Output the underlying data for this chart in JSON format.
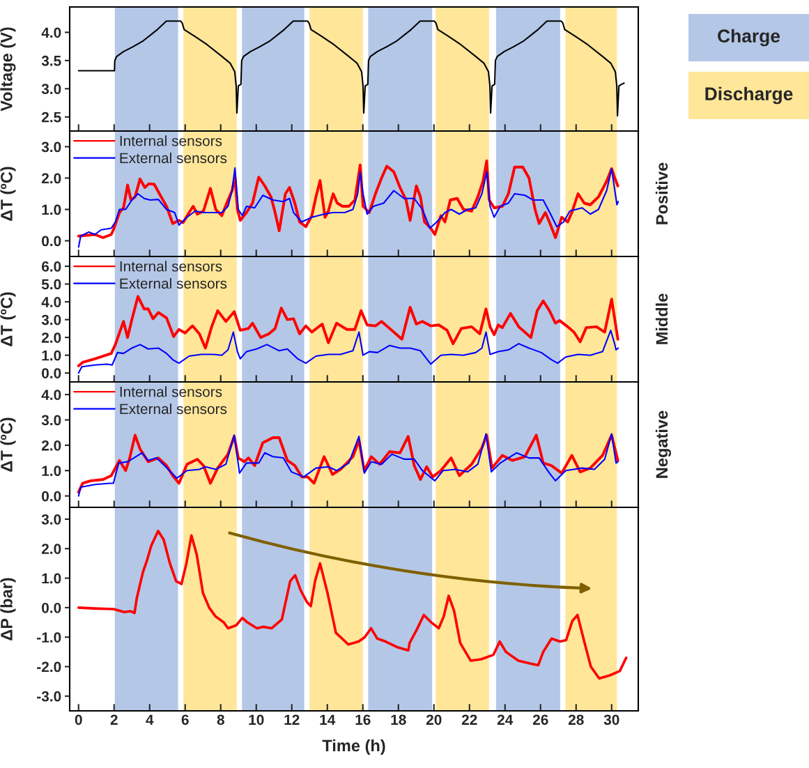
{
  "chart_data": [
    {
      "type": "line",
      "ylabel": "Voltage (V)",
      "annotations": [
        "Charge",
        "Discharge"
      ],
      "xlim": [
        -0.5,
        31.5
      ],
      "xticks": [
        0,
        2,
        4,
        6,
        8,
        10,
        12,
        14,
        16,
        18,
        20,
        22,
        24,
        26,
        28,
        30
      ],
      "ylim": [
        2.25,
        4.45
      ],
      "yticks": [
        {
          "value": 2.5,
          "label": "2.5"
        },
        {
          "value": 3.0,
          "label": "3.0"
        },
        {
          "value": 3.5,
          "label": "3.5"
        },
        {
          "value": 4.0,
          "label": "4.0"
        }
      ],
      "tick_labels": "y",
      "bands": [
        {
          "axis": "x",
          "from": 2.04,
          "to": 5.6,
          "color": "#b4c7e7"
        },
        {
          "axis": "x",
          "from": 5.9,
          "to": 8.9,
          "color": "#ffe699"
        },
        {
          "axis": "x",
          "from": 9.2,
          "to": 12.7,
          "color": "#b4c7e7"
        },
        {
          "axis": "x",
          "from": 13.0,
          "to": 16.0,
          "color": "#ffe699"
        },
        {
          "axis": "x",
          "from": 16.3,
          "to": 19.9,
          "color": "#b4c7e7"
        },
        {
          "axis": "x",
          "from": 20.1,
          "to": 23.1,
          "color": "#ffe699"
        },
        {
          "axis": "x",
          "from": 23.5,
          "to": 27.1,
          "color": "#b4c7e7"
        },
        {
          "axis": "x",
          "from": 27.4,
          "to": 30.3,
          "color": "#ffe699"
        }
      ],
      "series": [
        {
          "color": "#000000",
          "x": [
            0,
            2.02,
            2.04,
            2.14,
            2.54,
            3.04,
            3.64,
            4.44,
            4.94,
            5.74,
            5.84,
            5.94,
            6.54,
            7.24,
            8.04,
            8.54,
            8.79,
            8.87,
            8.91,
            8.99,
            9.14,
            9.18,
            9.28,
            9.68,
            10.18,
            10.78,
            11.58,
            12.08,
            12.88,
            12.98,
            13.08,
            13.68,
            14.38,
            15.18,
            15.68,
            15.93,
            16.01,
            16.05,
            16.13,
            16.28,
            16.32,
            16.42,
            16.82,
            17.32,
            17.92,
            18.72,
            19.22,
            20.02,
            20.12,
            20.22,
            20.82,
            21.52,
            22.32,
            22.82,
            23.07,
            23.15,
            23.19,
            23.27,
            23.42,
            23.46,
            23.56,
            23.96,
            24.46,
            25.06,
            25.86,
            26.36,
            27.16,
            27.26,
            27.36,
            27.96,
            28.66,
            29.46,
            29.96,
            30.21,
            30.29,
            30.33,
            30.41,
            30.56,
            30.7
          ],
          "values": [
            3.32,
            3.32,
            3.5,
            3.57,
            3.66,
            3.74,
            3.85,
            4.05,
            4.2,
            4.2,
            4.16,
            4.05,
            3.93,
            3.78,
            3.58,
            3.45,
            3.3,
            3.05,
            2.57,
            3.05,
            3.08,
            3.5,
            3.57,
            3.66,
            3.74,
            3.85,
            4.05,
            4.2,
            4.2,
            4.16,
            4.05,
            3.93,
            3.78,
            3.58,
            3.45,
            3.3,
            3.05,
            2.57,
            3.05,
            3.08,
            3.5,
            3.57,
            3.66,
            3.74,
            3.85,
            4.05,
            4.2,
            4.2,
            4.16,
            4.05,
            3.93,
            3.78,
            3.58,
            3.45,
            3.3,
            3.05,
            2.57,
            3.05,
            3.08,
            3.5,
            3.57,
            3.66,
            3.74,
            3.85,
            4.05,
            4.2,
            4.2,
            4.16,
            4.05,
            3.93,
            3.78,
            3.58,
            3.45,
            3.3,
            3.05,
            2.52,
            3.05,
            3.08,
            3.1
          ]
        }
      ]
    },
    {
      "type": "line",
      "annotations": [
        "Positive"
      ],
      "ylabel": "ΔT (ºC)",
      "xlim": [
        -0.5,
        31.5
      ],
      "xticks": [
        0,
        2,
        4,
        6,
        8,
        10,
        12,
        14,
        16,
        18,
        20,
        22,
        24,
        26,
        28,
        30
      ],
      "ylim": [
        -0.5,
        3.5
      ],
      "yticks": [
        {
          "value": 0,
          "label": "0.0"
        },
        {
          "value": 1,
          "label": "1.0"
        },
        {
          "value": 2,
          "label": "2.0"
        },
        {
          "value": 3,
          "label": "3.0"
        }
      ],
      "tick_labels": "y",
      "legend": "top left",
      "bands": [
        {
          "axis": "x",
          "from": 2.04,
          "to": 5.6,
          "color": "#b4c7e7"
        },
        {
          "axis": "x",
          "from": 5.9,
          "to": 8.9,
          "color": "#ffe699"
        },
        {
          "axis": "x",
          "from": 9.2,
          "to": 12.7,
          "color": "#b4c7e7"
        },
        {
          "axis": "x",
          "from": 13.0,
          "to": 16.0,
          "color": "#ffe699"
        },
        {
          "axis": "x",
          "from": 16.3,
          "to": 19.9,
          "color": "#b4c7e7"
        },
        {
          "axis": "x",
          "from": 20.1,
          "to": 23.1,
          "color": "#ffe699"
        },
        {
          "axis": "x",
          "from": 23.5,
          "to": 27.1,
          "color": "#b4c7e7"
        },
        {
          "axis": "x",
          "from": 27.4,
          "to": 30.3,
          "color": "#ffe699"
        }
      ],
      "series": [
        {
          "name": "Internal sensors",
          "color": "#ff0000",
          "x": [
            0,
            0.92,
            1.38,
            1.84,
            1.96,
            2.3,
            2.53,
            2.76,
            2.95,
            3.18,
            3.46,
            3.73,
            3.96,
            4.26,
            4.6,
            4.95,
            5.3,
            5.65,
            5.88,
            6.22,
            6.45,
            6.68,
            7.03,
            7.42,
            7.72,
            8.06,
            8.41,
            8.64,
            8.8,
            8.94,
            9.1,
            9.45,
            9.79,
            10.14,
            10.48,
            10.83,
            11.06,
            11.29,
            11.64,
            11.87,
            12.17,
            12.44,
            12.79,
            13.13,
            13.36,
            13.59,
            13.87,
            14.06,
            14.33,
            14.56,
            14.86,
            15.21,
            15.55,
            15.85,
            16.01,
            16.36,
            16.71,
            17.05,
            17.35,
            17.74,
            18.09,
            18.43,
            18.66,
            19.01,
            19.24,
            19.47,
            19.82,
            20.05,
            20.39,
            20.62,
            20.92,
            21.31,
            21.66,
            22.12,
            22.47,
            22.76,
            22.97,
            23.11,
            23.39,
            23.85,
            24.19,
            24.54,
            25.0,
            25.35,
            25.69,
            25.92,
            26.27,
            26.5,
            26.84,
            27.19,
            27.53,
            27.76,
            28.11,
            28.46,
            28.8,
            29.26,
            29.72,
            30.0,
            30.18,
            30.35
          ],
          "values": [
            0.15,
            0.2,
            0.1,
            0.2,
            0.35,
            0.9,
            1.05,
            1.78,
            1.3,
            1.4,
            1.97,
            1.7,
            1.82,
            1.8,
            1.45,
            1.1,
            0.55,
            0.65,
            0.58,
            0.9,
            1.1,
            0.85,
            0.95,
            1.67,
            1.0,
            0.8,
            1.3,
            1.6,
            2.05,
            1.0,
            0.65,
            0.9,
            1.2,
            2.03,
            1.75,
            1.4,
            0.9,
            0.32,
            1.5,
            1.7,
            1.2,
            0.6,
            0.45,
            0.8,
            1.4,
            1.92,
            0.75,
            0.95,
            1.5,
            1.2,
            1.1,
            1.1,
            1.3,
            2.42,
            1.1,
            0.9,
            1.5,
            2.0,
            2.38,
            2.2,
            1.7,
            1.3,
            0.65,
            1.75,
            1.4,
            0.6,
            0.4,
            0.2,
            0.8,
            0.6,
            1.3,
            1.35,
            1.0,
            0.95,
            1.4,
            1.9,
            2.55,
            1.3,
            1.05,
            1.1,
            1.5,
            2.35,
            2.35,
            2.0,
            1.0,
            0.55,
            0.9,
            0.6,
            0.1,
            0.75,
            0.6,
            0.9,
            1.5,
            1.2,
            1.15,
            1.4,
            1.9,
            2.3,
            2.0,
            1.75
          ]
        },
        {
          "name": "External sensors",
          "color": "#0000ff",
          "x": [
            0,
            0.12,
            0.58,
            0.92,
            1.27,
            1.84,
            2.07,
            2.3,
            2.65,
            3.0,
            3.34,
            3.69,
            4.03,
            4.49,
            4.95,
            5.41,
            5.65,
            6.1,
            6.57,
            7.03,
            7.6,
            8.06,
            8.41,
            8.64,
            8.8,
            8.99,
            9.22,
            9.45,
            9.91,
            10.37,
            10.94,
            11.52,
            11.87,
            12.1,
            12.56,
            13.13,
            13.82,
            14.29,
            14.98,
            15.44,
            15.71,
            15.85,
            16.01,
            16.24,
            16.59,
            17.17,
            17.74,
            18.32,
            18.89,
            19.35,
            19.77,
            20.16,
            20.62,
            20.97,
            21.43,
            21.89,
            22.35,
            22.7,
            22.97,
            23.16,
            23.39,
            23.73,
            24.19,
            24.54,
            25.12,
            25.58,
            26.15,
            26.61,
            26.91,
            27.3,
            27.65,
            28.34,
            28.8,
            29.26,
            29.72,
            30.0,
            30.18,
            30.3,
            30.37
          ],
          "values": [
            -0.2,
            0.15,
            0.28,
            0.2,
            0.35,
            0.4,
            0.6,
            1.0,
            1.0,
            1.3,
            1.5,
            1.35,
            1.3,
            1.32,
            1.0,
            0.9,
            0.5,
            0.75,
            0.95,
            0.9,
            0.9,
            0.9,
            1.1,
            1.6,
            2.32,
            1.0,
            0.8,
            1.1,
            1.05,
            1.45,
            1.3,
            1.25,
            1.35,
            0.9,
            0.6,
            0.75,
            0.85,
            0.9,
            0.9,
            1.0,
            1.5,
            2.2,
            1.5,
            0.85,
            1.1,
            1.2,
            1.6,
            1.35,
            1.35,
            1.0,
            0.4,
            0.6,
            0.9,
            1.0,
            0.85,
            1.0,
            1.05,
            1.5,
            2.2,
            1.1,
            0.75,
            1.1,
            1.2,
            1.5,
            1.45,
            1.3,
            1.3,
            0.8,
            0.45,
            0.6,
            0.95,
            1.05,
            0.85,
            1.0,
            1.6,
            2.3,
            1.6,
            1.15,
            1.25
          ]
        }
      ]
    },
    {
      "type": "line",
      "annotations": [
        "Middle"
      ],
      "ylabel": "ΔT (ºC)",
      "xlim": [
        -0.5,
        31.5
      ],
      "xticks": [
        0,
        2,
        4,
        6,
        8,
        10,
        12,
        14,
        16,
        18,
        20,
        22,
        24,
        26,
        28,
        30
      ],
      "ylim": [
        -0.5,
        6.55
      ],
      "yticks": [
        {
          "value": 0,
          "label": "0.0"
        },
        {
          "value": 1,
          "label": "1.0"
        },
        {
          "value": 2,
          "label": "2.0"
        },
        {
          "value": 3,
          "label": "3.0"
        },
        {
          "value": 4,
          "label": "4.0"
        },
        {
          "value": 5,
          "label": "5.0"
        },
        {
          "value": 6,
          "label": "6.0"
        }
      ],
      "tick_labels": "y",
      "legend": "top left",
      "bands": [
        {
          "axis": "x",
          "from": 2.04,
          "to": 5.6,
          "color": "#b4c7e7"
        },
        {
          "axis": "x",
          "from": 5.9,
          "to": 8.9,
          "color": "#ffe699"
        },
        {
          "axis": "x",
          "from": 9.2,
          "to": 12.7,
          "color": "#b4c7e7"
        },
        {
          "axis": "x",
          "from": 13.0,
          "to": 16.0,
          "color": "#ffe699"
        },
        {
          "axis": "x",
          "from": 16.3,
          "to": 19.9,
          "color": "#b4c7e7"
        },
        {
          "axis": "x",
          "from": 20.1,
          "to": 23.1,
          "color": "#ffe699"
        },
        {
          "axis": "x",
          "from": 23.5,
          "to": 27.1,
          "color": "#b4c7e7"
        },
        {
          "axis": "x",
          "from": 27.4,
          "to": 30.3,
          "color": "#ffe699"
        }
      ],
      "series": [
        {
          "name": "Internal sensors",
          "color": "#ff0000",
          "x": [
            0,
            0.23,
            0.92,
            1.84,
            2.07,
            2.53,
            2.76,
            3.0,
            3.34,
            3.69,
            3.92,
            4.19,
            4.49,
            4.95,
            5.35,
            5.65,
            5.99,
            6.41,
            6.8,
            7.14,
            7.49,
            7.83,
            8.29,
            8.76,
            9.1,
            9.56,
            9.79,
            10.25,
            10.71,
            11.06,
            11.41,
            11.75,
            12.1,
            12.44,
            12.79,
            13.13,
            13.71,
            14.06,
            14.52,
            15.09,
            15.55,
            15.9,
            16.24,
            16.71,
            17.05,
            17.51,
            18.2,
            18.66,
            19.01,
            19.35,
            19.82,
            20.28,
            20.74,
            21.08,
            21.54,
            22.12,
            22.58,
            22.93,
            23.16,
            23.39,
            23.62,
            23.85,
            24.31,
            24.77,
            25.46,
            25.81,
            26.15,
            26.5,
            26.84,
            27.07,
            27.53,
            27.88,
            28.23,
            28.57,
            29.15,
            29.61,
            30.0,
            30.18,
            30.35
          ],
          "values": [
            0.4,
            0.6,
            0.8,
            1.1,
            1.6,
            2.9,
            2.0,
            3.0,
            4.3,
            3.6,
            3.6,
            3.05,
            3.4,
            3.1,
            2.05,
            2.45,
            2.25,
            2.65,
            2.2,
            1.4,
            2.6,
            3.5,
            2.9,
            3.45,
            2.4,
            2.5,
            2.8,
            2.0,
            2.2,
            2.5,
            3.65,
            3.0,
            3.05,
            2.2,
            2.65,
            2.3,
            2.75,
            1.7,
            2.8,
            2.45,
            2.45,
            3.5,
            2.7,
            2.65,
            2.9,
            2.5,
            1.9,
            3.7,
            2.75,
            2.9,
            2.65,
            2.7,
            2.4,
            1.65,
            2.5,
            2.6,
            2.2,
            3.6,
            2.6,
            2.15,
            2.7,
            2.55,
            3.35,
            2.6,
            2.0,
            3.5,
            4.05,
            3.5,
            2.8,
            2.95,
            2.6,
            2.3,
            1.75,
            2.55,
            2.6,
            2.3,
            4.15,
            3.0,
            1.9
          ]
        },
        {
          "name": "External sensors",
          "color": "#0000ff",
          "x": [
            0,
            0.18,
            0.92,
            1.61,
            1.89,
            2.19,
            2.53,
            3.0,
            3.46,
            3.92,
            4.49,
            4.95,
            5.3,
            5.65,
            6.22,
            6.91,
            7.6,
            8.06,
            8.41,
            8.71,
            8.94,
            9.1,
            9.45,
            10.02,
            10.6,
            11.29,
            11.75,
            12.33,
            12.79,
            13.36,
            14.06,
            14.75,
            15.44,
            15.78,
            16.01,
            16.36,
            16.82,
            17.51,
            18.09,
            18.66,
            19.24,
            19.82,
            20.39,
            20.97,
            21.66,
            22.35,
            22.7,
            22.93,
            23.16,
            23.62,
            24.19,
            24.77,
            25.35,
            26.04,
            26.61,
            26.96,
            27.42,
            28.11,
            28.8,
            29.49,
            29.95,
            30.18,
            30.25,
            30.37
          ],
          "values": [
            0.0,
            0.35,
            0.45,
            0.5,
            0.45,
            1.15,
            1.1,
            1.4,
            1.6,
            1.35,
            1.4,
            1.1,
            0.75,
            0.55,
            0.95,
            1.05,
            1.05,
            1.0,
            1.3,
            2.3,
            1.2,
            0.8,
            1.2,
            1.35,
            1.6,
            1.25,
            1.35,
            0.8,
            0.55,
            0.95,
            1.05,
            1.05,
            1.25,
            2.3,
            1.0,
            1.2,
            1.15,
            1.55,
            1.4,
            1.4,
            1.25,
            0.5,
            1.0,
            1.05,
            1.0,
            1.15,
            1.4,
            2.3,
            1.05,
            1.2,
            1.3,
            1.65,
            1.4,
            1.15,
            0.75,
            0.55,
            0.9,
            1.05,
            1.0,
            1.2,
            2.4,
            1.6,
            1.3,
            1.4
          ]
        }
      ]
    },
    {
      "type": "line",
      "annotations": [
        "Negative"
      ],
      "ylabel": "ΔT (ºC)",
      "xlim": [
        -0.5,
        31.5
      ],
      "xticks": [
        0,
        2,
        4,
        6,
        8,
        10,
        12,
        14,
        16,
        18,
        20,
        22,
        24,
        26,
        28,
        30
      ],
      "ylim": [
        -0.45,
        4.5
      ],
      "yticks": [
        {
          "value": 0,
          "label": "0.0"
        },
        {
          "value": 1,
          "label": "1.0"
        },
        {
          "value": 2,
          "label": "2.0"
        },
        {
          "value": 3,
          "label": "3.0"
        },
        {
          "value": 4,
          "label": "4.0"
        }
      ],
      "tick_labels": "y",
      "legend": "top left",
      "bands": [
        {
          "axis": "x",
          "from": 2.04,
          "to": 5.6,
          "color": "#b4c7e7"
        },
        {
          "axis": "x",
          "from": 5.9,
          "to": 8.9,
          "color": "#ffe699"
        },
        {
          "axis": "x",
          "from": 9.2,
          "to": 12.7,
          "color": "#b4c7e7"
        },
        {
          "axis": "x",
          "from": 13.0,
          "to": 16.0,
          "color": "#ffe699"
        },
        {
          "axis": "x",
          "from": 16.3,
          "to": 19.9,
          "color": "#b4c7e7"
        },
        {
          "axis": "x",
          "from": 20.1,
          "to": 23.1,
          "color": "#ffe699"
        },
        {
          "axis": "x",
          "from": 23.5,
          "to": 27.1,
          "color": "#b4c7e7"
        },
        {
          "axis": "x",
          "from": 27.4,
          "to": 30.3,
          "color": "#ffe699"
        }
      ],
      "series": [
        {
          "name": "Internal sensors",
          "color": "#ff0000",
          "x": [
            0,
            0.23,
            0.69,
            1.38,
            1.84,
            2.3,
            2.65,
            2.88,
            3.18,
            3.46,
            3.92,
            4.49,
            4.95,
            5.3,
            5.65,
            6.1,
            6.68,
            7.03,
            7.42,
            7.83,
            8.41,
            8.76,
            8.99,
            9.33,
            9.56,
            9.91,
            10.37,
            10.94,
            11.29,
            11.75,
            12.17,
            12.56,
            12.9,
            13.25,
            13.82,
            14.29,
            14.75,
            15.44,
            15.78,
            16.08,
            16.47,
            16.94,
            17.51,
            18.09,
            18.55,
            18.89,
            19.24,
            19.59,
            19.93,
            20.39,
            20.97,
            21.43,
            22.12,
            22.7,
            22.97,
            23.27,
            23.85,
            24.42,
            25.12,
            25.76,
            26.15,
            26.61,
            27.19,
            27.76,
            28.23,
            28.8,
            29.49,
            30.0,
            30.35
          ],
          "values": [
            0.15,
            0.5,
            0.6,
            0.65,
            0.8,
            1.4,
            1.0,
            1.5,
            2.4,
            1.85,
            1.35,
            1.5,
            1.2,
            0.8,
            0.5,
            1.25,
            1.45,
            1.2,
            0.5,
            1.1,
            1.65,
            2.35,
            1.5,
            1.35,
            1.5,
            1.2,
            2.1,
            2.3,
            2.3,
            1.4,
            1.2,
            0.75,
            0.75,
            0.5,
            1.55,
            0.85,
            1.05,
            1.55,
            2.2,
            1.0,
            1.55,
            1.25,
            1.75,
            1.7,
            2.35,
            1.2,
            0.65,
            1.15,
            0.75,
            1.0,
            1.5,
            0.8,
            1.25,
            1.9,
            2.4,
            1.1,
            1.6,
            1.4,
            1.55,
            2.4,
            1.3,
            1.2,
            0.9,
            1.6,
            0.95,
            1.1,
            1.6,
            2.4,
            1.4
          ]
        },
        {
          "name": "External sensors",
          "color": "#0000ff",
          "x": [
            0,
            0.12,
            0.92,
            1.73,
            1.96,
            2.26,
            2.76,
            3.57,
            3.92,
            4.38,
            4.84,
            5.53,
            6.1,
            6.8,
            7.14,
            7.72,
            8.29,
            8.76,
            9.06,
            9.45,
            10.14,
            10.48,
            10.94,
            11.52,
            11.98,
            12.67,
            13.36,
            14.06,
            14.52,
            15.21,
            15.78,
            16.08,
            16.47,
            17.05,
            17.63,
            18.32,
            18.89,
            19.35,
            20.05,
            20.51,
            21.2,
            21.89,
            22.47,
            22.93,
            23.23,
            23.73,
            24.65,
            25.35,
            25.92,
            26.5,
            26.84,
            27.42,
            28.34,
            29.03,
            29.61,
            30.0,
            30.25,
            30.35
          ],
          "values": [
            0.0,
            0.35,
            0.45,
            0.5,
            0.5,
            1.3,
            1.35,
            1.7,
            1.4,
            1.5,
            1.2,
            0.7,
            1.0,
            1.05,
            1.15,
            1.05,
            1.25,
            2.4,
            0.9,
            1.3,
            1.3,
            1.7,
            1.55,
            1.5,
            0.95,
            0.75,
            1.1,
            1.15,
            1.0,
            1.3,
            2.35,
            0.9,
            1.35,
            1.25,
            1.65,
            1.45,
            1.45,
            1.0,
            0.6,
            1.0,
            1.05,
            0.95,
            1.25,
            2.45,
            0.95,
            1.3,
            1.7,
            1.5,
            1.5,
            0.9,
            0.6,
            1.0,
            1.1,
            1.05,
            1.45,
            2.45,
            1.3,
            1.35
          ]
        }
      ]
    },
    {
      "type": "line",
      "xlabel": "Time (h)",
      "ylabel": "ΔP (bar)",
      "xlim": [
        -0.5,
        31.5
      ],
      "xticks": [
        0,
        2,
        4,
        6,
        8,
        10,
        12,
        14,
        16,
        18,
        20,
        22,
        24,
        26,
        28,
        30
      ],
      "ylim": [
        -3.5,
        3.4
      ],
      "yticks": [
        {
          "value": -3,
          "label": "-3.0"
        },
        {
          "value": -2,
          "label": "-2.0"
        },
        {
          "value": -1,
          "label": "-1.0"
        },
        {
          "value": 0,
          "label": "0.0"
        },
        {
          "value": 1,
          "label": "1.0"
        },
        {
          "value": 2,
          "label": "2.0"
        },
        {
          "value": 3,
          "label": "3.0"
        }
      ],
      "bands": [
        {
          "axis": "x",
          "from": 2.04,
          "to": 5.6,
          "color": "#b4c7e7"
        },
        {
          "axis": "x",
          "from": 5.9,
          "to": 8.9,
          "color": "#ffe699"
        },
        {
          "axis": "x",
          "from": 9.2,
          "to": 12.7,
          "color": "#b4c7e7"
        },
        {
          "axis": "x",
          "from": 13.0,
          "to": 16.0,
          "color": "#ffe699"
        },
        {
          "axis": "x",
          "from": 16.3,
          "to": 19.9,
          "color": "#b4c7e7"
        },
        {
          "axis": "x",
          "from": 20.1,
          "to": 23.1,
          "color": "#ffe699"
        },
        {
          "axis": "x",
          "from": 23.5,
          "to": 27.1,
          "color": "#b4c7e7"
        },
        {
          "axis": "x",
          "from": 27.4,
          "to": 30.3,
          "color": "#ffe699"
        }
      ],
      "series": [
        {
          "color": "#ff0000",
          "x": [
            0,
            0.93,
            1.98,
            2.57,
            2.92,
            3.15,
            3.27,
            3.62,
            3.85,
            4.09,
            4.48,
            4.79,
            5.14,
            5.49,
            5.79,
            6.07,
            6.35,
            6.65,
            7.0,
            7.35,
            7.71,
            8.17,
            8.41,
            8.87,
            9.22,
            9.5,
            10.04,
            10.39,
            10.86,
            11.44,
            11.91,
            12.19,
            12.49,
            12.84,
            13.07,
            13.31,
            13.59,
            14.01,
            14.48,
            15.18,
            15.76,
            16.11,
            16.46,
            16.81,
            17.28,
            17.98,
            18.56,
            18.63,
            19.03,
            19.43,
            19.85,
            20.27,
            20.55,
            20.83,
            21.13,
            21.48,
            22.07,
            22.65,
            23.35,
            23.7,
            24.05,
            24.75,
            25.45,
            25.87,
            26.15,
            26.62,
            27.09,
            27.44,
            27.79,
            28.08,
            28.48,
            28.83,
            29.3,
            29.88,
            30.46,
            30.82
          ],
          "values": [
            0.0,
            -0.03,
            -0.05,
            -0.15,
            -0.12,
            -0.18,
            0.3,
            1.2,
            1.6,
            2.1,
            2.6,
            2.3,
            1.5,
            0.9,
            0.8,
            1.5,
            2.45,
            1.8,
            0.5,
            0.0,
            -0.3,
            -0.5,
            -0.7,
            -0.6,
            -0.35,
            -0.5,
            -0.7,
            -0.65,
            -0.7,
            -0.4,
            0.9,
            1.1,
            0.6,
            0.2,
            0.05,
            0.9,
            1.5,
            0.5,
            -0.85,
            -1.25,
            -1.15,
            -1.0,
            -0.7,
            -1.05,
            -1.15,
            -1.35,
            -1.45,
            -1.2,
            -0.75,
            -0.25,
            -0.5,
            -0.7,
            -0.3,
            0.4,
            -0.1,
            -1.2,
            -1.8,
            -1.75,
            -1.6,
            -1.15,
            -1.5,
            -1.8,
            -1.9,
            -1.95,
            -1.5,
            -1.05,
            -1.15,
            -1.1,
            -0.45,
            -0.25,
            -1.2,
            -2.0,
            -2.4,
            -2.3,
            -2.15,
            -1.7
          ]
        }
      ]
    }
  ]
}
